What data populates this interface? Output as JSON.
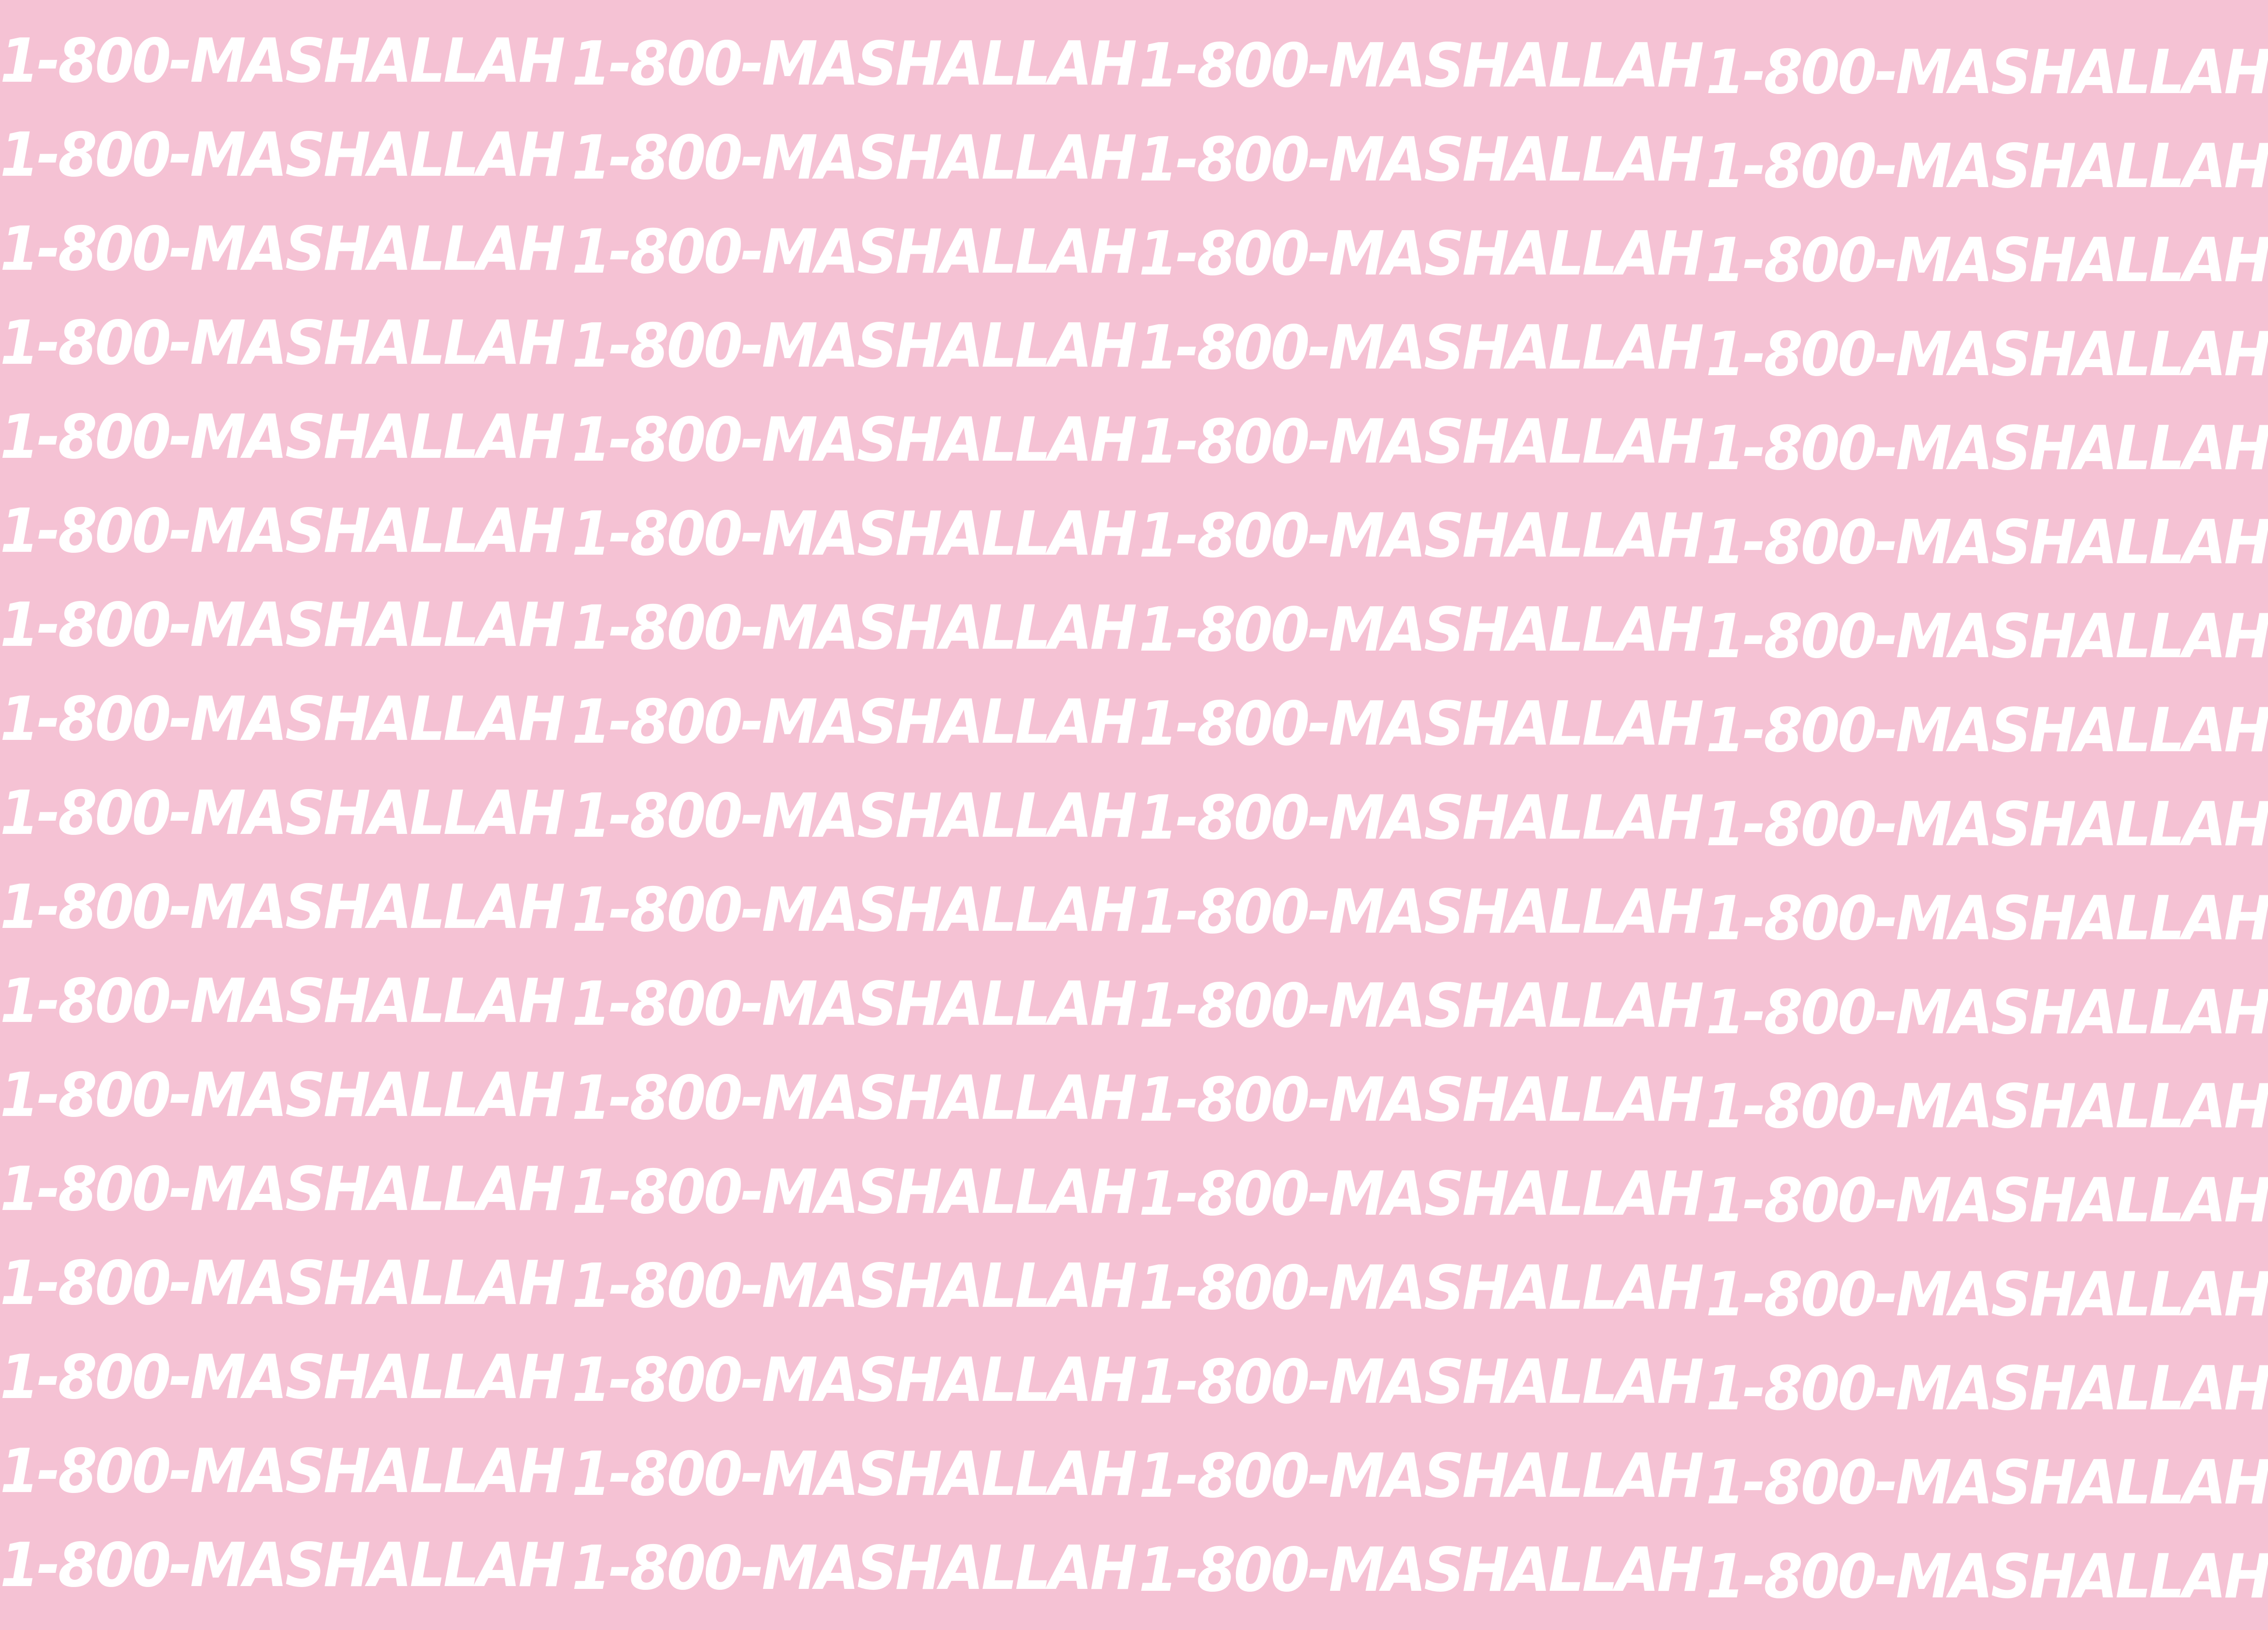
{
  "background_color": "#F5C2D4",
  "text_color": "#FFFFFF",
  "pattern": {
    "phrase": "1-800-MASHALLAH",
    "rows": 17,
    "columns": 4
  }
}
